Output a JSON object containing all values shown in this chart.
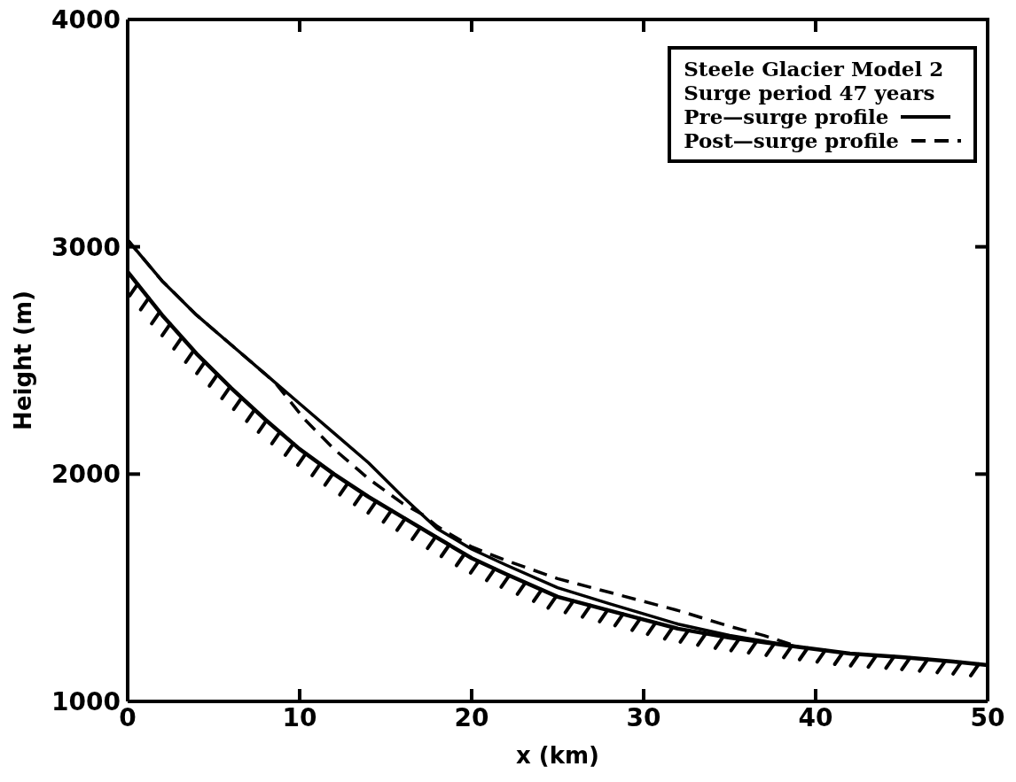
{
  "chart_data": {
    "type": "line",
    "title": "Steele Glacier Model 2",
    "subtitle": "Surge period 47 years",
    "xlabel": "x (km)",
    "ylabel": "Height (m)",
    "xlim": [
      0,
      50
    ],
    "ylim": [
      1000,
      4000
    ],
    "xticks": [
      0,
      10,
      20,
      30,
      40,
      50
    ],
    "yticks": [
      1000,
      2000,
      3000,
      4000
    ],
    "legend": "top right",
    "marker": "none",
    "series": [
      {
        "name": "Pre—surge profile",
        "color": "#000000",
        "line_style": "solid",
        "x": [
          0,
          2,
          4,
          6,
          8,
          10,
          12,
          14,
          16,
          17,
          18,
          20,
          22,
          25,
          28,
          30,
          32,
          35,
          39
        ],
        "values": [
          3030,
          2850,
          2700,
          2570,
          2440,
          2310,
          2180,
          2050,
          1900,
          1830,
          1760,
          1670,
          1600,
          1500,
          1430,
          1385,
          1340,
          1290,
          1240
        ]
      },
      {
        "name": "Post—surge profile",
        "color": "#000000",
        "line_style": "dashed",
        "x": [
          0,
          2,
          4,
          6,
          8,
          8.6,
          10.3,
          12,
          14,
          16,
          17.2,
          18,
          20,
          22,
          25,
          28,
          30,
          32,
          35,
          37,
          39
        ],
        "values": [
          3030,
          2850,
          2700,
          2570,
          2440,
          2400,
          2240,
          2110,
          1980,
          1870,
          1820,
          1770,
          1680,
          1620,
          1540,
          1480,
          1440,
          1400,
          1330,
          1290,
          1240
        ]
      },
      {
        "color": "#000000",
        "line_style": "solid",
        "x": [
          0,
          2,
          4,
          6,
          8,
          10,
          12,
          14,
          16,
          18,
          20,
          22,
          25,
          28,
          30,
          32,
          35,
          39,
          42,
          45,
          48,
          50
        ],
        "values": [
          2890,
          2700,
          2530,
          2380,
          2240,
          2110,
          2000,
          1900,
          1810,
          1720,
          1630,
          1560,
          1460,
          1400,
          1360,
          1320,
          1280,
          1240,
          1210,
          1195,
          1175,
          1160
        ]
      }
    ]
  }
}
